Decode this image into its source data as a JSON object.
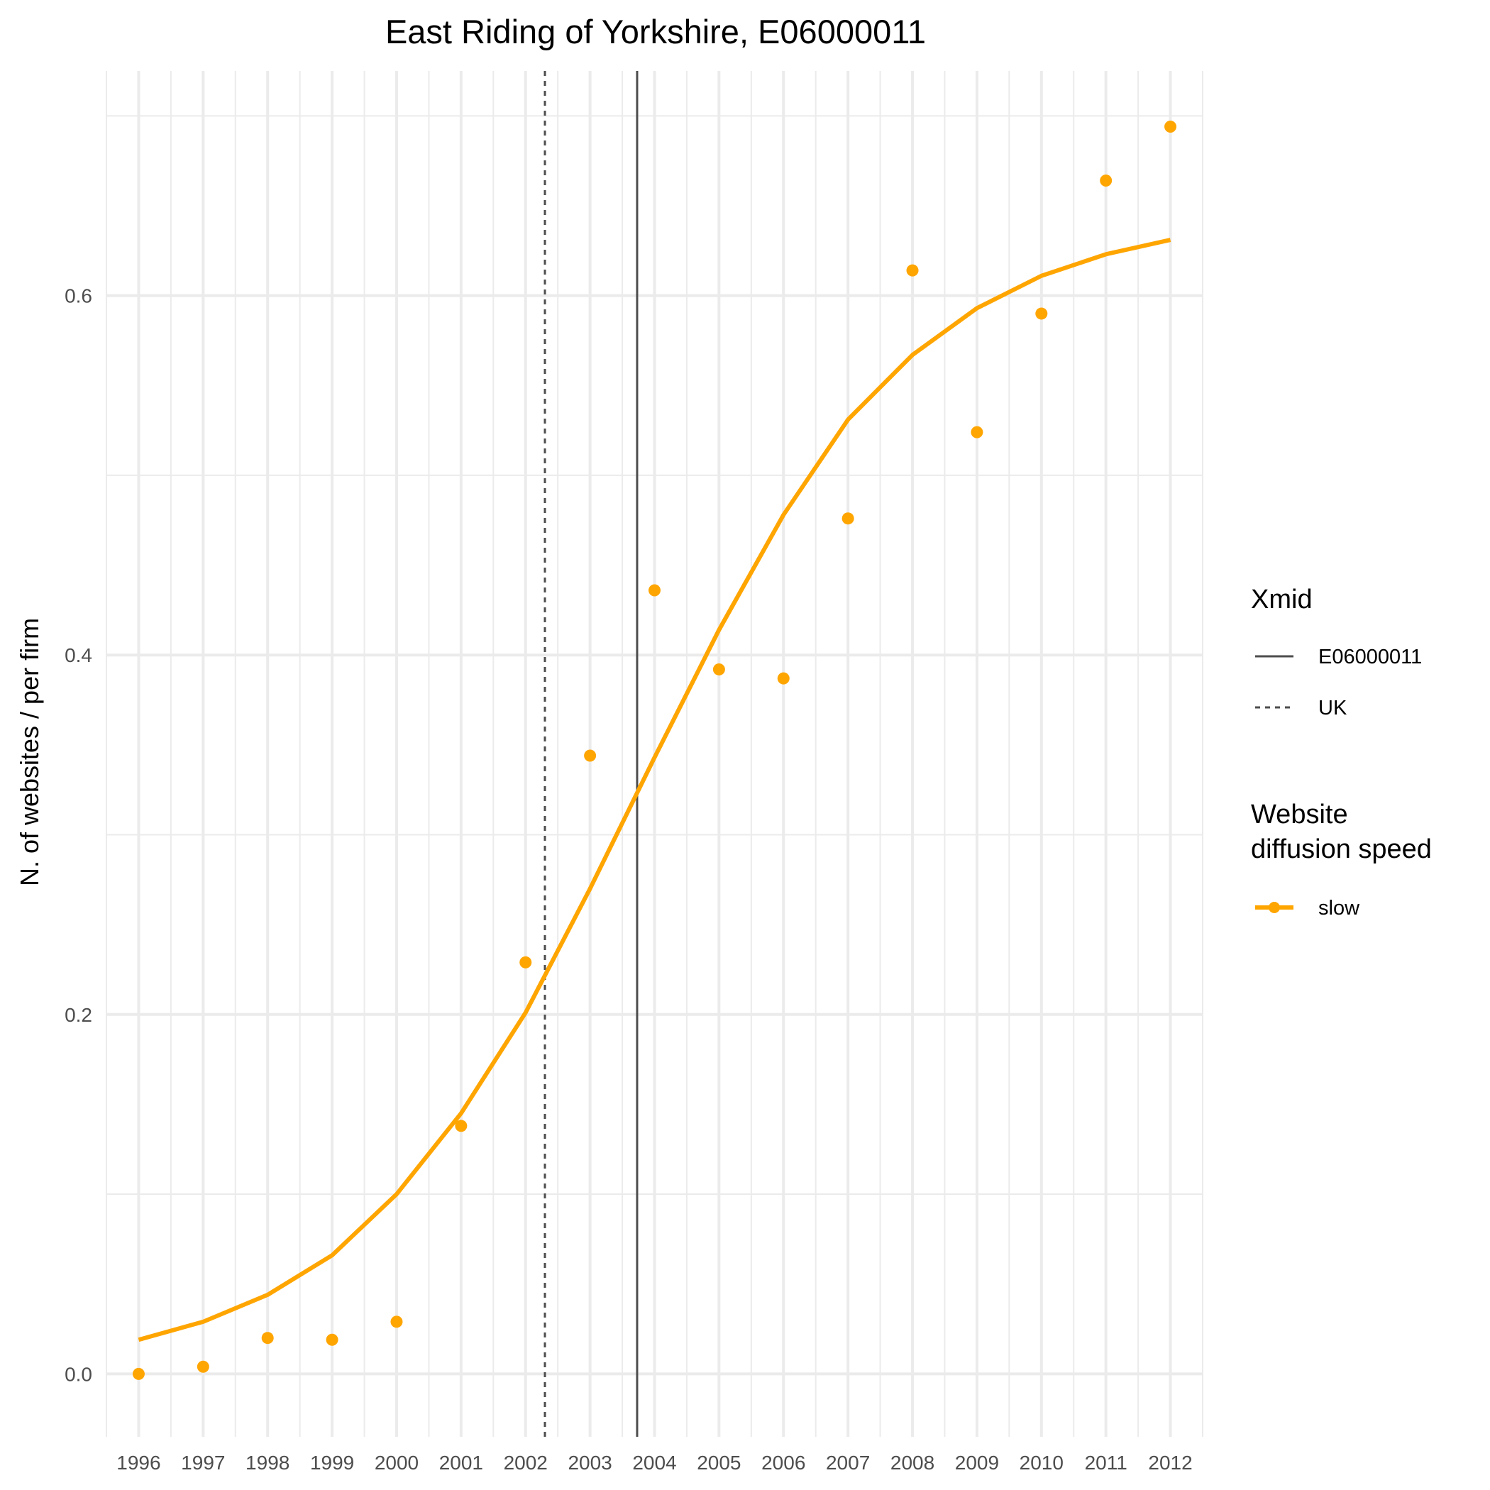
{
  "chart_data": {
    "type": "line",
    "title": "East Riding of Yorkshire, E06000011",
    "xlabel": "",
    "ylabel": "N. of websites / per firm",
    "x": [
      1996,
      1997,
      1998,
      1999,
      2000,
      2001,
      2002,
      2003,
      2004,
      2005,
      2006,
      2007,
      2008,
      2009,
      2010,
      2011,
      2012
    ],
    "x_ticks": [
      "1996",
      "1997",
      "1998",
      "1999",
      "2000",
      "2001",
      "2002",
      "2003",
      "2004",
      "2005",
      "2006",
      "2007",
      "2008",
      "2009",
      "2010",
      "2011",
      "2012"
    ],
    "y_ticks": [
      "0.0",
      "0.2",
      "0.4",
      "0.6"
    ],
    "xlim": [
      1995.5,
      2012.5
    ],
    "ylim": [
      -0.035,
      0.725
    ],
    "grid": true,
    "series": [
      {
        "name": "slow",
        "color": "#FFA500",
        "points": [
          0.0,
          0.004,
          0.02,
          0.019,
          0.029,
          0.138,
          0.229,
          0.344,
          0.436,
          0.392,
          0.387,
          0.476,
          0.614,
          0.524,
          0.59,
          0.664,
          0.694
        ],
        "fitted": [
          0.019,
          0.029,
          0.044,
          0.066,
          0.1,
          0.145,
          0.201,
          0.27,
          0.343,
          0.414,
          0.478,
          0.531,
          0.567,
          0.593,
          0.611,
          0.623,
          0.631
        ]
      }
    ],
    "vlines": [
      {
        "name": "E06000011",
        "x": 2003.73,
        "style": "solid",
        "color": "#4d4d4d"
      },
      {
        "name": "UK",
        "x": 2002.3,
        "style": "dashed",
        "color": "#4d4d4d"
      }
    ],
    "legends": [
      {
        "title": "Xmid",
        "items": [
          "E06000011",
          "UK"
        ]
      },
      {
        "title_lines": [
          "Website",
          "diffusion speed"
        ],
        "items": [
          "slow"
        ]
      }
    ],
    "legend_position": "right"
  }
}
